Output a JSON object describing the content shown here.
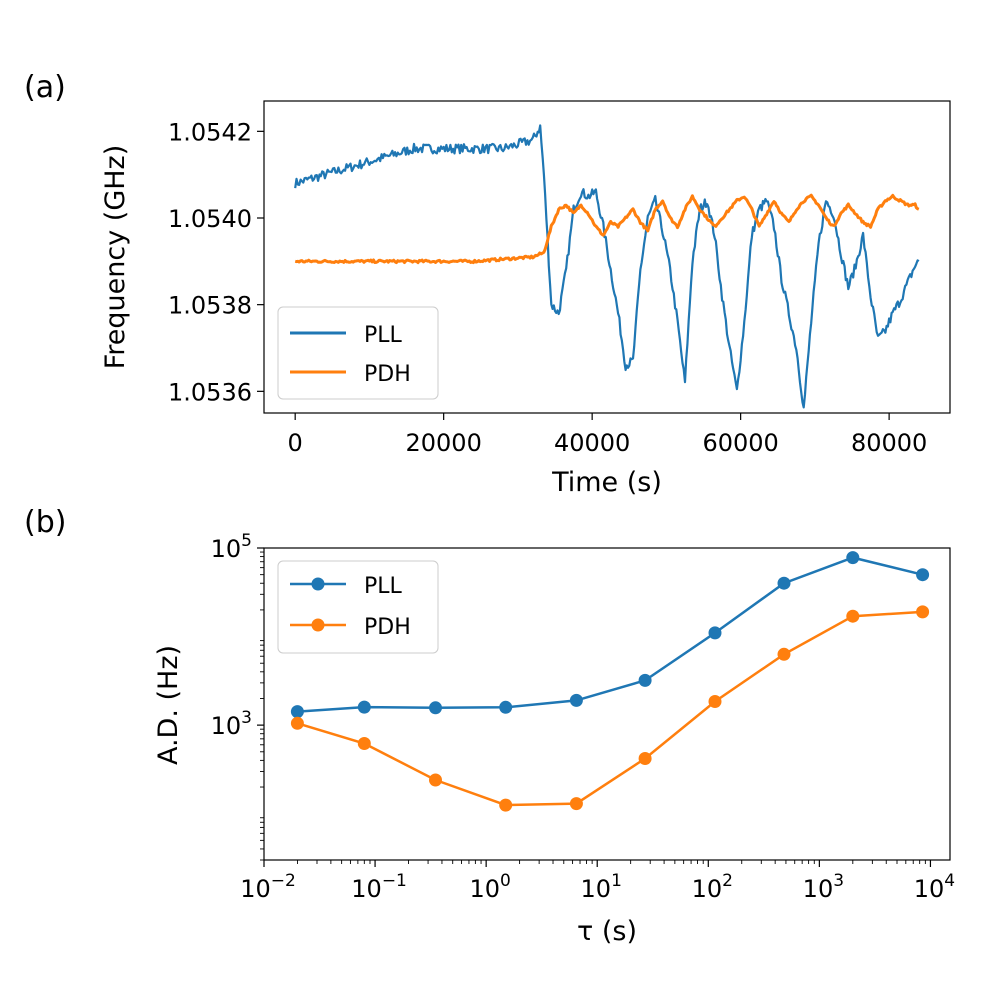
{
  "colors": {
    "pll": "#1f77b4",
    "pdh": "#ff7f0e",
    "axis": "#000000"
  },
  "chart_data": [
    {
      "type": "line",
      "panel_label": "(a)",
      "xlabel": "Time (s)",
      "ylabel": "Frequency (GHz)",
      "xlim": [
        -4200,
        88200
      ],
      "ylim": [
        1.05355,
        1.05427
      ],
      "xticks": [
        0,
        20000,
        40000,
        60000,
        80000
      ],
      "xtick_labels": [
        "0",
        "20000",
        "40000",
        "60000",
        "80000"
      ],
      "yticks": [
        1.0536,
        1.0538,
        1.054,
        1.0542
      ],
      "ytick_labels": [
        "1.0536",
        "1.0538",
        "1.0540",
        "1.0542"
      ],
      "legend": {
        "position": "lower-left",
        "entries": [
          "PLL",
          "PDH"
        ]
      },
      "series": [
        {
          "name": "PLL",
          "x": [
            0,
            4000,
            8000,
            12000,
            16000,
            20000,
            24000,
            28000,
            32000,
            33000,
            33500,
            34500,
            35500,
            36500,
            37500,
            38500,
            39500,
            40500,
            41500,
            42500,
            43500,
            44500,
            45500,
            46500,
            47500,
            48500,
            49500,
            50500,
            51500,
            52500,
            53500,
            54500,
            55500,
            56500,
            57500,
            58500,
            59500,
            60500,
            61500,
            62500,
            63500,
            64500,
            65500,
            66500,
            67500,
            68500,
            69500,
            70500,
            71500,
            72500,
            73500,
            74500,
            75500,
            76500,
            77500,
            78500,
            79500,
            80500,
            81500,
            82500,
            83500,
            84000
          ],
          "y": [
            1.05408,
            1.0541,
            1.05412,
            1.05414,
            1.05416,
            1.05416,
            1.05416,
            1.05416,
            1.05418,
            1.05421,
            1.0541,
            1.0538,
            1.05378,
            1.05388,
            1.05402,
            1.05406,
            1.05405,
            1.05406,
            1.05398,
            1.05388,
            1.05378,
            1.05366,
            1.05367,
            1.05388,
            1.054,
            1.05404,
            1.05397,
            1.05388,
            1.05376,
            1.05362,
            1.0539,
            1.05402,
            1.05404,
            1.05396,
            1.05382,
            1.0537,
            1.0536,
            1.05376,
            1.05396,
            1.05402,
            1.05404,
            1.05398,
            1.05386,
            1.05378,
            1.0537,
            1.05356,
            1.05376,
            1.05394,
            1.05404,
            1.05401,
            1.05392,
            1.05384,
            1.05389,
            1.05396,
            1.05382,
            1.05372,
            1.05374,
            1.05378,
            1.05381,
            1.05385,
            1.05389,
            1.0539
          ]
        },
        {
          "name": "PDH",
          "x": [
            0,
            8000,
            16000,
            24000,
            32000,
            33500,
            34500,
            35500,
            36500,
            37500,
            38500,
            39500,
            40500,
            41500,
            42500,
            43500,
            44500,
            45500,
            46500,
            47500,
            48500,
            49500,
            50500,
            51500,
            52500,
            53500,
            54500,
            55500,
            56500,
            57500,
            58500,
            59500,
            60500,
            61500,
            62500,
            63500,
            64500,
            65500,
            66500,
            67500,
            68500,
            69500,
            70500,
            71500,
            72500,
            73500,
            74500,
            75500,
            76500,
            77500,
            78500,
            79500,
            80500,
            81500,
            82500,
            83500,
            84000
          ],
          "y": [
            1.0539,
            1.0539,
            1.0539,
            1.0539,
            1.05391,
            1.05392,
            1.05398,
            1.05402,
            1.05403,
            1.05401,
            1.05403,
            1.05401,
            1.05398,
            1.05396,
            1.05399,
            1.05398,
            1.054,
            1.05402,
            1.05399,
            1.05397,
            1.05402,
            1.05404,
            1.054,
            1.05398,
            1.05402,
            1.05405,
            1.05402,
            1.054,
            1.05398,
            1.054,
            1.05402,
            1.05404,
            1.05405,
            1.05402,
            1.05398,
            1.05401,
            1.05404,
            1.05401,
            1.05399,
            1.05402,
            1.05404,
            1.05405,
            1.05403,
            1.054,
            1.05398,
            1.05401,
            1.05403,
            1.05401,
            1.05399,
            1.05398,
            1.05402,
            1.05404,
            1.05405,
            1.05404,
            1.05403,
            1.05403,
            1.05402
          ]
        }
      ]
    },
    {
      "type": "line",
      "panel_label": "(b)",
      "xlabel": "τ (s)",
      "ylabel": "A.D. (Hz)",
      "xscale": "log",
      "yscale": "log",
      "xlim": [
        0.01,
        15000
      ],
      "ylim": [
        30,
        100000
      ],
      "xticks": [
        0.01,
        0.1,
        1,
        10,
        100,
        1000,
        10000
      ],
      "xtick_labels": [
        {
          "base": "10",
          "exp": "−2"
        },
        {
          "base": "10",
          "exp": "−1"
        },
        {
          "base": "10",
          "exp": "0"
        },
        {
          "base": "10",
          "exp": "1"
        },
        {
          "base": "10",
          "exp": "2"
        },
        {
          "base": "10",
          "exp": "3"
        },
        {
          "base": "10",
          "exp": "4"
        }
      ],
      "yticks": [
        1000,
        100000
      ],
      "ytick_labels": [
        {
          "base": "10",
          "exp": "3"
        },
        {
          "base": "10",
          "exp": "5"
        }
      ],
      "legend": {
        "position": "top-left",
        "entries": [
          "PLL",
          "PDH"
        ]
      },
      "series": [
        {
          "name": "PLL",
          "x": [
            0.02,
            0.08,
            0.35,
            1.5,
            6.5,
            27,
            115,
            480,
            2000,
            8500
          ],
          "y": [
            1420,
            1600,
            1570,
            1590,
            1900,
            3200,
            11000,
            40000,
            78000,
            50000
          ]
        },
        {
          "name": "PDH",
          "x": [
            0.02,
            0.08,
            0.35,
            1.5,
            6.5,
            27,
            115,
            480,
            2000,
            8500
          ],
          "y": [
            1050,
            620,
            240,
            125,
            130,
            420,
            1850,
            6300,
            17000,
            19000
          ]
        }
      ]
    }
  ]
}
